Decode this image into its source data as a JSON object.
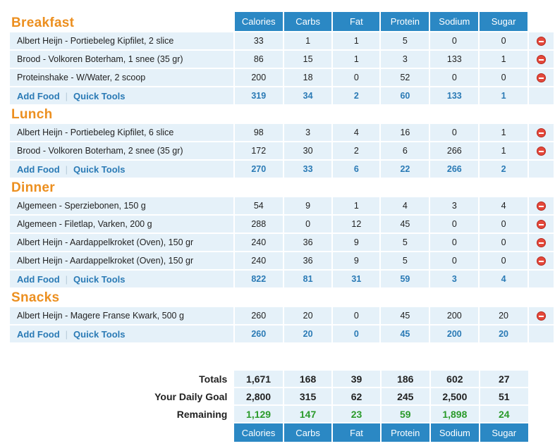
{
  "columns": [
    "Calories",
    "Carbs",
    "Fat",
    "Protein",
    "Sodium",
    "Sugar"
  ],
  "add_food_label": "Add Food",
  "quick_tools_label": "Quick Tools",
  "meals": [
    {
      "title": "Breakfast",
      "foods": [
        {
          "name": "Albert Heijn - Portiebeleg Kipfilet, 2 slice",
          "values": [
            "33",
            "1",
            "1",
            "5",
            "0",
            "0"
          ]
        },
        {
          "name": "Brood - Volkoren Boterham, 1 snee (35 gr)",
          "values": [
            "86",
            "15",
            "1",
            "3",
            "133",
            "1"
          ]
        },
        {
          "name": "Proteinshake - W/Water, 2 scoop",
          "values": [
            "200",
            "18",
            "0",
            "52",
            "0",
            "0"
          ]
        }
      ],
      "totals": [
        "319",
        "34",
        "2",
        "60",
        "133",
        "1"
      ]
    },
    {
      "title": "Lunch",
      "foods": [
        {
          "name": "Albert Heijn - Portiebeleg Kipfilet, 6 slice",
          "values": [
            "98",
            "3",
            "4",
            "16",
            "0",
            "1"
          ]
        },
        {
          "name": "Brood - Volkoren Boterham, 2 snee (35 gr)",
          "values": [
            "172",
            "30",
            "2",
            "6",
            "266",
            "1"
          ]
        }
      ],
      "totals": [
        "270",
        "33",
        "6",
        "22",
        "266",
        "2"
      ]
    },
    {
      "title": "Dinner",
      "foods": [
        {
          "name": "Algemeen - Sperziebonen, 150 g",
          "values": [
            "54",
            "9",
            "1",
            "4",
            "3",
            "4"
          ]
        },
        {
          "name": "Algemeen - Filetlap, Varken, 200 g",
          "values": [
            "288",
            "0",
            "12",
            "45",
            "0",
            "0"
          ]
        },
        {
          "name": "Albert Heijn - Aardappelkroket (Oven), 150 gr",
          "values": [
            "240",
            "36",
            "9",
            "5",
            "0",
            "0"
          ]
        },
        {
          "name": "Albert Heijn - Aardappelkroket (Oven), 150 gr",
          "values": [
            "240",
            "36",
            "9",
            "5",
            "0",
            "0"
          ]
        }
      ],
      "totals": [
        "822",
        "81",
        "31",
        "59",
        "3",
        "4"
      ]
    },
    {
      "title": "Snacks",
      "foods": [
        {
          "name": "Albert Heijn - Magere Franse Kwark, 500 g",
          "values": [
            "260",
            "20",
            "0",
            "45",
            "200",
            "20"
          ]
        }
      ],
      "totals": [
        "260",
        "20",
        "0",
        "45",
        "200",
        "20"
      ]
    }
  ],
  "summary": {
    "totals": {
      "label": "Totals",
      "values": [
        "1,671",
        "168",
        "39",
        "186",
        "602",
        "27"
      ]
    },
    "goal": {
      "label": "Your Daily Goal",
      "values": [
        "2,800",
        "315",
        "62",
        "245",
        "2,500",
        "51"
      ]
    },
    "remaining": {
      "label": "Remaining",
      "values": [
        "1,129",
        "147",
        "23",
        "59",
        "1,898",
        "24"
      ]
    }
  }
}
